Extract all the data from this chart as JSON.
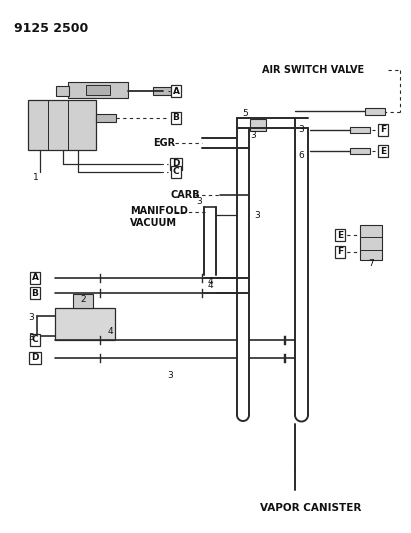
{
  "bg_color": "#ffffff",
  "lc": "#2a2a2a",
  "tc": "#111111",
  "part_number": "9125 2500",
  "labels": {
    "air_switch_valve": "AIR SWITCH VALVE",
    "egr": "EGR",
    "carb": "CARB",
    "manifold_vacuum": "MANIFOLD\nVACUUM",
    "vapor_canister": "VAPOR CANISTER"
  },
  "numbers": [
    "1",
    "2",
    "3",
    "4",
    "5",
    "6",
    "7"
  ],
  "letters": [
    "A",
    "B",
    "C",
    "D",
    "E",
    "F"
  ]
}
